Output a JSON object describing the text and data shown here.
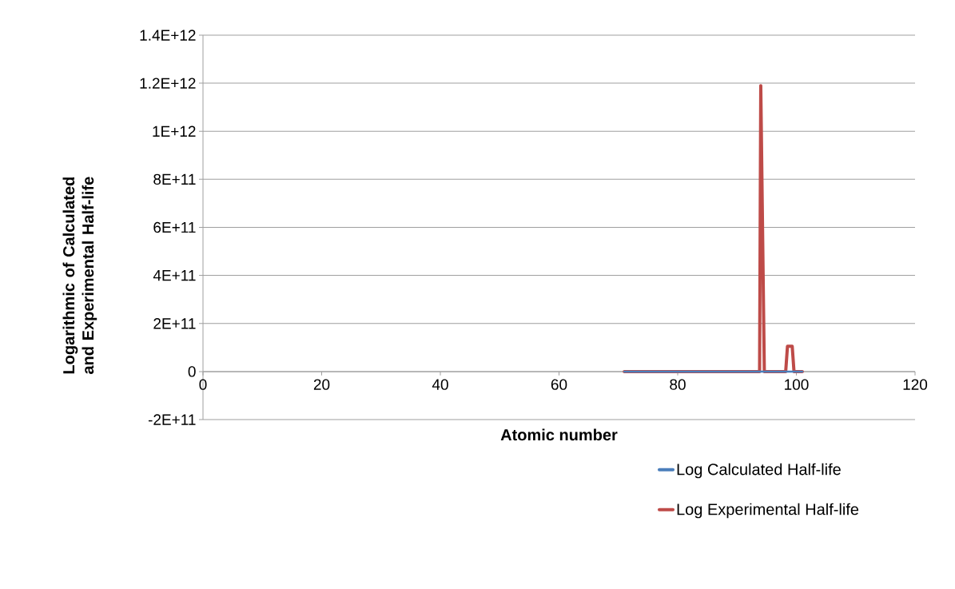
{
  "chart_data": {
    "type": "line",
    "xlabel": "Atomic number",
    "ylabel": "Logarithmic of Calculated and Experimental Half-life",
    "xlim": [
      0,
      120
    ],
    "xticks": [
      0,
      20,
      40,
      60,
      80,
      100,
      120
    ],
    "ylim": [
      -200000000000,
      1400000000000
    ],
    "yticks": [
      {
        "value": -200000000000,
        "label": "-2E+11"
      },
      {
        "value": 0,
        "label": "0"
      },
      {
        "value": 200000000000,
        "label": "2E+11"
      },
      {
        "value": 400000000000,
        "label": "4E+11"
      },
      {
        "value": 600000000000,
        "label": "6E+11"
      },
      {
        "value": 800000000000,
        "label": "8E+11"
      },
      {
        "value": 1000000000000,
        "label": "1E+12"
      },
      {
        "value": 1200000000000,
        "label": "1.2E+12"
      },
      {
        "value": 1400000000000,
        "label": "1.4E+12"
      }
    ],
    "grid": "y",
    "legend": "bottom right",
    "series": [
      {
        "name": "Log Calculated Half-life",
        "color": "#4a7ebb",
        "x": [
          71,
          80,
          90,
          93.8,
          94,
          94.6,
          95,
          98.2,
          98.5,
          99.3,
          99.6,
          101
        ],
        "values": [
          0,
          0,
          0,
          0,
          0,
          0,
          0,
          0,
          0,
          0,
          0,
          0
        ]
      },
      {
        "name": "Log Experimental Half-life",
        "color": "#be4b48",
        "x": [
          71,
          80,
          90,
          93.8,
          94,
          94.6,
          95,
          98.2,
          98.5,
          99.3,
          99.6,
          101
        ],
        "values": [
          0,
          0,
          0,
          0,
          1190000000000,
          0,
          0,
          0,
          105000000000,
          105000000000,
          0,
          0
        ]
      }
    ]
  }
}
